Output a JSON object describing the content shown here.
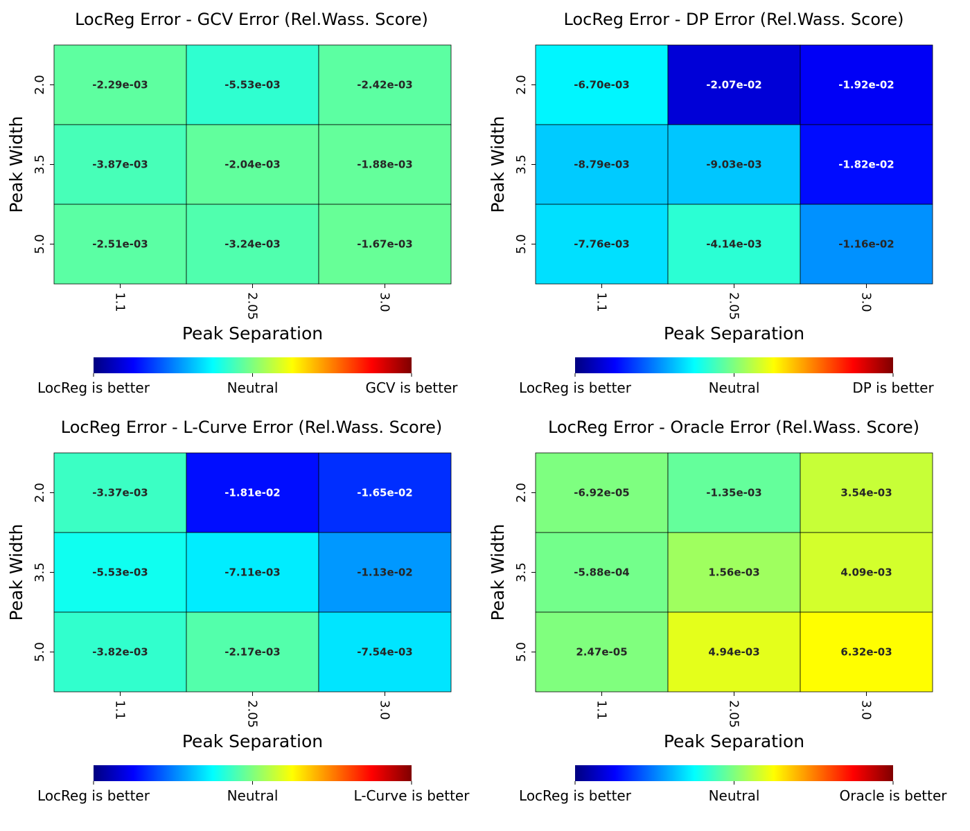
{
  "colors": {
    "cell_border": "#000000",
    "label_dark": "#262626",
    "label_light": "#ffffff",
    "colormap": "jet",
    "colormap_stops": [
      "#00007f",
      "#0000ff",
      "#007fff",
      "#00ffff",
      "#7fff7f",
      "#ffff00",
      "#ff7f00",
      "#ff0000",
      "#7f0000"
    ]
  },
  "chart_data": [
    {
      "type": "heatmap",
      "title": "LocReg Error - GCV Error (Rel.Wass. Score)",
      "xlabel": "Peak Separation",
      "ylabel": "Peak Width",
      "x_categories": [
        "1.1",
        "2.05",
        "3.0"
      ],
      "y_categories": [
        "2.0",
        "3.5",
        "5.0"
      ],
      "values": [
        [
          -0.00229,
          -0.00553,
          -0.00242
        ],
        [
          -0.00387,
          -0.00204,
          -0.00188
        ],
        [
          -0.00251,
          -0.00324,
          -0.00167
        ]
      ],
      "cell_labels": [
        [
          "-2.29e-03",
          "-5.53e-03",
          "-2.42e-03"
        ],
        [
          "-3.87e-03",
          "-2.04e-03",
          "-1.88e-03"
        ],
        [
          "-2.51e-03",
          "-3.24e-03",
          "-1.67e-03"
        ]
      ],
      "vlim": [
        -0.035,
        0.035
      ],
      "colorbar": {
        "orientation": "horizontal",
        "tick_labels": [
          "LocReg is better",
          "Neutral",
          "GCV is better"
        ]
      }
    },
    {
      "type": "heatmap",
      "title": "LocReg Error - DP Error (Rel.Wass. Score)",
      "xlabel": "Peak Separation",
      "ylabel": "Peak Width",
      "x_categories": [
        "1.1",
        "2.05",
        "3.0"
      ],
      "y_categories": [
        "2.0",
        "3.5",
        "5.0"
      ],
      "values": [
        [
          -0.0067,
          -0.0207,
          -0.0192
        ],
        [
          -0.00879,
          -0.00903,
          -0.0182
        ],
        [
          -0.00776,
          -0.00414,
          -0.0116
        ]
      ],
      "cell_labels": [
        [
          "-6.70e-03",
          "-2.07e-02",
          "-1.92e-02"
        ],
        [
          "-8.79e-03",
          "-9.03e-03",
          "-1.82e-02"
        ],
        [
          "-7.76e-03",
          "-4.14e-03",
          "-1.16e-02"
        ]
      ],
      "vlim": [
        -0.025,
        0.025
      ],
      "colorbar": {
        "orientation": "horizontal",
        "tick_labels": [
          "LocReg is better",
          "Neutral",
          "DP is better"
        ]
      }
    },
    {
      "type": "heatmap",
      "title": "LocReg Error - L-Curve Error (Rel.Wass. Score)",
      "xlabel": "Peak Separation",
      "ylabel": "Peak Width",
      "x_categories": [
        "1.1",
        "2.05",
        "3.0"
      ],
      "y_categories": [
        "2.0",
        "3.5",
        "5.0"
      ],
      "values": [
        [
          -0.00337,
          -0.0181,
          -0.0165
        ],
        [
          -0.00553,
          -0.00711,
          -0.0113
        ],
        [
          -0.00382,
          -0.00217,
          -0.00754
        ]
      ],
      "cell_labels": [
        [
          "-3.37e-03",
          "-1.81e-02",
          "-1.65e-02"
        ],
        [
          "-5.53e-03",
          "-7.11e-03",
          "-1.13e-02"
        ],
        [
          "-3.82e-03",
          "-2.17e-03",
          "-7.54e-03"
        ]
      ],
      "vlim": [
        -0.025,
        0.025
      ],
      "colorbar": {
        "orientation": "horizontal",
        "tick_labels": [
          "LocReg is better",
          "Neutral",
          "L-Curve is better"
        ]
      }
    },
    {
      "type": "heatmap",
      "title": "LocReg Error - Oracle Error (Rel.Wass. Score)",
      "xlabel": "Peak Separation",
      "ylabel": "Peak Width",
      "x_categories": [
        "1.1",
        "2.05",
        "3.0"
      ],
      "y_categories": [
        "2.0",
        "3.5",
        "5.0"
      ],
      "values": [
        [
          -6.92e-05,
          -0.00135,
          0.00354
        ],
        [
          -0.000588,
          0.00156,
          0.00409
        ],
        [
          2.47e-05,
          0.00494,
          0.00632
        ]
      ],
      "cell_labels": [
        [
          "-6.92e-05",
          "-1.35e-03",
          "3.54e-03"
        ],
        [
          "-5.88e-04",
          "1.56e-03",
          "4.09e-03"
        ],
        [
          "2.47e-05",
          "4.94e-03",
          "6.32e-03"
        ]
      ],
      "vlim": [
        -0.025,
        0.025
      ],
      "colorbar": {
        "orientation": "horizontal",
        "tick_labels": [
          "LocReg is better",
          "Neutral",
          "Oracle is better"
        ]
      }
    }
  ]
}
